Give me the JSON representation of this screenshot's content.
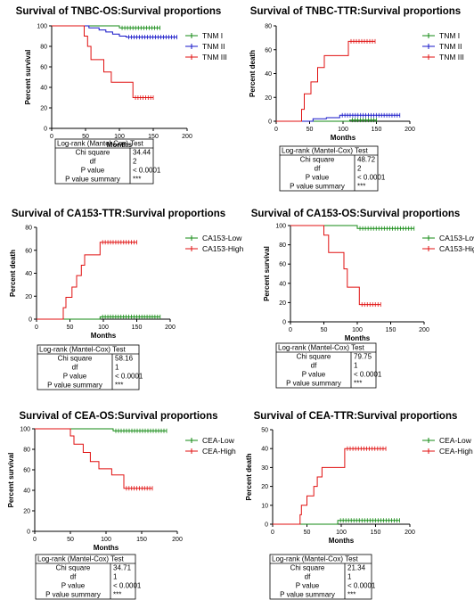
{
  "colors": {
    "green": "#138a13",
    "blue": "#1515c8",
    "red": "#e01010"
  },
  "tables": [
    {
      "header": "Log-rank (Mantel-Cox) Test",
      "rows": [
        [
          "Chi square",
          "34.44"
        ],
        [
          "df",
          "2"
        ],
        [
          "P value",
          "< 0.0001"
        ],
        [
          "P value summary",
          "***"
        ]
      ]
    },
    {
      "header": "Log-rank (Mantel-Cox) Test",
      "rows": [
        [
          "Chi square",
          "48.72"
        ],
        [
          "df",
          "2"
        ],
        [
          "P value",
          "< 0.0001"
        ],
        [
          "P value summary",
          "***"
        ]
      ]
    },
    {
      "header": "Log-rank (Mantel-Cox) Test",
      "rows": [
        [
          "Chi square",
          "58.16"
        ],
        [
          "df",
          "1"
        ],
        [
          "P value",
          "< 0.0001"
        ],
        [
          "P value summary",
          "***"
        ]
      ]
    },
    {
      "header": "Log-rank (Mantel-Cox) Test",
      "rows": [
        [
          "Chi square",
          "79.75"
        ],
        [
          "df",
          "1"
        ],
        [
          "P value",
          "< 0.0001"
        ],
        [
          "P value summary",
          "***"
        ]
      ]
    },
    {
      "header": "Log-rank (Mantel-Cox) Test",
      "rows": [
        [
          "Chi square",
          "34.71"
        ],
        [
          "df",
          "1"
        ],
        [
          "P value",
          "< 0.0001"
        ],
        [
          "P value summary",
          "***"
        ]
      ]
    },
    {
      "header": "Log-rank (Mantel-Cox) Test",
      "rows": [
        [
          "Chi square",
          "21.34"
        ],
        [
          "df",
          "1"
        ],
        [
          "P value",
          "< 0.0001"
        ],
        [
          "P value summary",
          "***"
        ]
      ]
    }
  ],
  "chart_data": [
    {
      "type": "line",
      "title": "Survival of TNBC-OS:Survival proportions",
      "xlabel": "Months",
      "ylabel": "Percent survival",
      "xlim": [
        0,
        200
      ],
      "ylim": [
        0,
        100
      ],
      "xticks": [
        0,
        50,
        100,
        150,
        200
      ],
      "yticks": [
        0,
        20,
        40,
        60,
        80,
        100
      ],
      "legend": "top-right",
      "series": [
        {
          "name": "TNM I",
          "color": "green",
          "steps": [
            [
              0,
              100
            ],
            [
              100,
              100
            ],
            [
              100,
              98
            ],
            [
              160,
              98
            ]
          ]
        },
        {
          "name": "TNM II",
          "color": "blue",
          "steps": [
            [
              0,
              100
            ],
            [
              55,
              100
            ],
            [
              55,
              98
            ],
            [
              70,
              98
            ],
            [
              70,
              96
            ],
            [
              80,
              96
            ],
            [
              80,
              94
            ],
            [
              90,
              94
            ],
            [
              90,
              92
            ],
            [
              100,
              92
            ],
            [
              100,
              90
            ],
            [
              110,
              90
            ],
            [
              110,
              89
            ],
            [
              185,
              89
            ]
          ]
        },
        {
          "name": "TNM III",
          "color": "red",
          "steps": [
            [
              0,
              100
            ],
            [
              48,
              100
            ],
            [
              48,
              90
            ],
            [
              53,
              90
            ],
            [
              53,
              80
            ],
            [
              58,
              80
            ],
            [
              58,
              67
            ],
            [
              77,
              67
            ],
            [
              77,
              55
            ],
            [
              88,
              55
            ],
            [
              88,
              45
            ],
            [
              120,
              45
            ],
            [
              120,
              30
            ],
            [
              150,
              30
            ]
          ]
        }
      ]
    },
    {
      "type": "line",
      "title": "Survival of TNBC-TTR:Survival proportions",
      "xlabel": "Months",
      "ylabel": "Percent death",
      "xlim": [
        0,
        200
      ],
      "ylim": [
        0,
        80
      ],
      "xticks": [
        0,
        50,
        100,
        150,
        200
      ],
      "yticks": [
        0,
        20,
        40,
        60,
        80
      ],
      "legend": "top-right",
      "series": [
        {
          "name": "TNM I",
          "color": "green",
          "steps": [
            [
              0,
              0
            ],
            [
              110,
              0
            ],
            [
              110,
              1
            ],
            [
              150,
              1
            ]
          ]
        },
        {
          "name": "TNM II",
          "color": "blue",
          "steps": [
            [
              0,
              0
            ],
            [
              55,
              0
            ],
            [
              55,
              2
            ],
            [
              75,
              2
            ],
            [
              75,
              3
            ],
            [
              95,
              3
            ],
            [
              95,
              5
            ],
            [
              185,
              5
            ]
          ]
        },
        {
          "name": "TNM III",
          "color": "red",
          "steps": [
            [
              0,
              0
            ],
            [
              38,
              0
            ],
            [
              38,
              10
            ],
            [
              42,
              10
            ],
            [
              42,
              23
            ],
            [
              52,
              23
            ],
            [
              52,
              33
            ],
            [
              62,
              33
            ],
            [
              62,
              45
            ],
            [
              72,
              45
            ],
            [
              72,
              55
            ],
            [
              108,
              55
            ],
            [
              108,
              67
            ],
            [
              148,
              67
            ]
          ]
        }
      ]
    },
    {
      "type": "line",
      "title": "Survival of CA153-TTR:Survival proportions",
      "xlabel": "Months",
      "ylabel": "Percent death",
      "xlim": [
        0,
        200
      ],
      "ylim": [
        0,
        80
      ],
      "xticks": [
        0,
        50,
        100,
        150,
        200
      ],
      "yticks": [
        0,
        20,
        40,
        60,
        80
      ],
      "legend": "top-right",
      "series": [
        {
          "name": "CA153-Low",
          "color": "green",
          "steps": [
            [
              0,
              0
            ],
            [
              95,
              0
            ],
            [
              95,
              2
            ],
            [
              185,
              2
            ]
          ]
        },
        {
          "name": "CA153-High",
          "color": "red",
          "steps": [
            [
              0,
              0
            ],
            [
              40,
              0
            ],
            [
              40,
              10
            ],
            [
              44,
              10
            ],
            [
              44,
              19
            ],
            [
              53,
              19
            ],
            [
              53,
              28
            ],
            [
              60,
              28
            ],
            [
              60,
              38
            ],
            [
              67,
              38
            ],
            [
              67,
              47
            ],
            [
              72,
              47
            ],
            [
              72,
              56
            ],
            [
              95,
              56
            ],
            [
              95,
              67
            ],
            [
              150,
              67
            ]
          ]
        }
      ]
    },
    {
      "type": "line",
      "title": "Survival of CA153-OS:Survival proportions",
      "xlabel": "Months",
      "ylabel": "Percent survival",
      "xlim": [
        0,
        200
      ],
      "ylim": [
        0,
        100
      ],
      "xticks": [
        0,
        50,
        100,
        150,
        200
      ],
      "yticks": [
        0,
        20,
        40,
        60,
        80,
        100
      ],
      "legend": "top-right",
      "series": [
        {
          "name": "CA153-Low",
          "color": "green",
          "steps": [
            [
              0,
              100
            ],
            [
              100,
              100
            ],
            [
              100,
              97
            ],
            [
              185,
              97
            ]
          ]
        },
        {
          "name": "CA153-High",
          "color": "red",
          "steps": [
            [
              0,
              100
            ],
            [
              50,
              100
            ],
            [
              50,
              90
            ],
            [
              57,
              90
            ],
            [
              57,
              72
            ],
            [
              80,
              72
            ],
            [
              80,
              55
            ],
            [
              85,
              55
            ],
            [
              85,
              36
            ],
            [
              103,
              36
            ],
            [
              103,
              18
            ],
            [
              135,
              18
            ]
          ]
        }
      ]
    },
    {
      "type": "line",
      "title": "Survival of CEA-OS:Survival proportions",
      "xlabel": "Months",
      "ylabel": "Percent survival",
      "xlim": [
        0,
        200
      ],
      "ylim": [
        0,
        100
      ],
      "xticks": [
        0,
        50,
        100,
        150,
        200
      ],
      "yticks": [
        0,
        20,
        40,
        60,
        80,
        100
      ],
      "legend": "top-right",
      "series": [
        {
          "name": "CEA-Low",
          "color": "green",
          "steps": [
            [
              0,
              100
            ],
            [
              110,
              100
            ],
            [
              110,
              98
            ],
            [
              185,
              98
            ]
          ]
        },
        {
          "name": "CEA-High",
          "color": "red",
          "steps": [
            [
              0,
              100
            ],
            [
              50,
              100
            ],
            [
              50,
              93
            ],
            [
              55,
              93
            ],
            [
              55,
              85
            ],
            [
              68,
              85
            ],
            [
              68,
              77
            ],
            [
              78,
              77
            ],
            [
              78,
              68
            ],
            [
              90,
              68
            ],
            [
              90,
              61
            ],
            [
              108,
              61
            ],
            [
              108,
              55
            ],
            [
              125,
              55
            ],
            [
              125,
              42
            ],
            [
              165,
              42
            ]
          ]
        }
      ]
    },
    {
      "type": "line",
      "title": "Survival of CEA-TTR:Survival proportions",
      "xlabel": "Months",
      "ylabel": "Percent death",
      "xlim": [
        0,
        200
      ],
      "ylim": [
        0,
        50
      ],
      "xticks": [
        0,
        50,
        100,
        150,
        200
      ],
      "yticks": [
        0,
        10,
        20,
        30,
        40,
        50
      ],
      "legend": "top-right",
      "series": [
        {
          "name": "CEA-Low",
          "color": "green",
          "steps": [
            [
              0,
              0
            ],
            [
              95,
              0
            ],
            [
              95,
              2
            ],
            [
              185,
              2
            ]
          ]
        },
        {
          "name": "CEA-High",
          "color": "red",
          "steps": [
            [
              0,
              0
            ],
            [
              40,
              0
            ],
            [
              40,
              5
            ],
            [
              42,
              5
            ],
            [
              42,
              10
            ],
            [
              50,
              10
            ],
            [
              50,
              15
            ],
            [
              60,
              15
            ],
            [
              60,
              20
            ],
            [
              65,
              20
            ],
            [
              65,
              25
            ],
            [
              72,
              25
            ],
            [
              72,
              30
            ],
            [
              105,
              30
            ],
            [
              105,
              40
            ],
            [
              165,
              40
            ]
          ]
        }
      ]
    }
  ]
}
